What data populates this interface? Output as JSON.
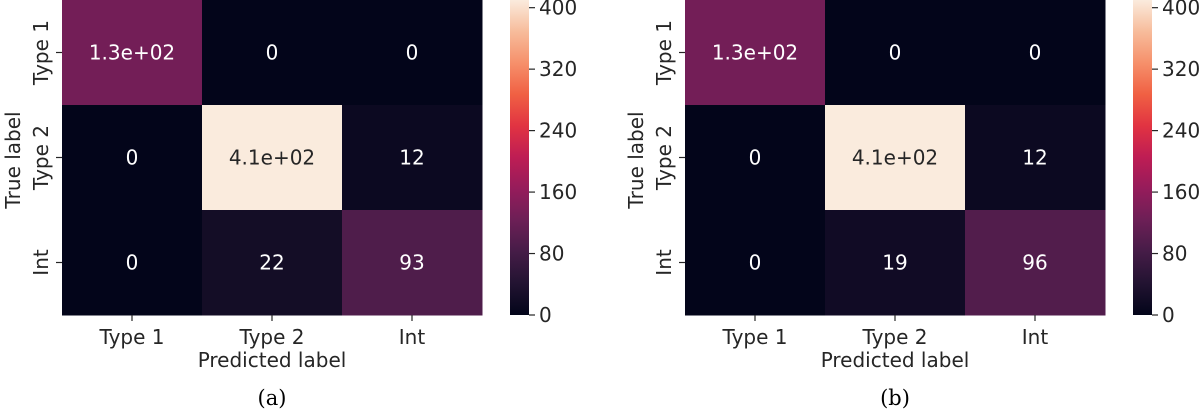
{
  "chart_data": [
    {
      "type": "heatmap",
      "caption": "(a)",
      "xlabel": "Predicted label",
      "ylabel": "True label",
      "x_categories": [
        "Type 1",
        "Type 2",
        "Int"
      ],
      "y_categories": [
        "Type 1",
        "Type 2",
        "Int"
      ],
      "values": [
        [
          130,
          0,
          0
        ],
        [
          0,
          410,
          12
        ],
        [
          0,
          22,
          93
        ]
      ],
      "annotations": [
        [
          "1.3e+02",
          "0",
          "0"
        ],
        [
          "0",
          "4.1e+02",
          "12"
        ],
        [
          "0",
          "22",
          "93"
        ]
      ],
      "colorbar": {
        "range": [
          0,
          410
        ],
        "ticks": [
          0,
          80,
          160,
          240,
          320,
          400
        ],
        "colormap": "rocket"
      }
    },
    {
      "type": "heatmap",
      "caption": "(b)",
      "xlabel": "Predicted label",
      "ylabel": "True label",
      "x_categories": [
        "Type 1",
        "Type 2",
        "Int"
      ],
      "y_categories": [
        "Type 1",
        "Type 2",
        "Int"
      ],
      "values": [
        [
          130,
          0,
          0
        ],
        [
          0,
          410,
          12
        ],
        [
          0,
          19,
          96
        ]
      ],
      "annotations": [
        [
          "1.3e+02",
          "0",
          "0"
        ],
        [
          "0",
          "4.1e+02",
          "12"
        ],
        [
          "0",
          "19",
          "96"
        ]
      ],
      "colorbar": {
        "range": [
          0,
          410
        ],
        "ticks": [
          0,
          80,
          160,
          240,
          320,
          400
        ],
        "colormap": "rocket"
      }
    }
  ]
}
